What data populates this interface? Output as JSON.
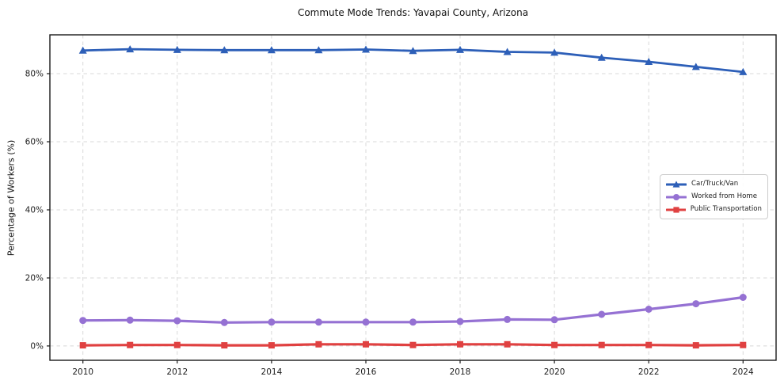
{
  "chart_data": {
    "type": "line",
    "title": "Commute Mode Trends: Yavapai County, Arizona",
    "xlabel": "",
    "ylabel": "Percentage of Workers (%)",
    "x": [
      2010,
      2011,
      2012,
      2013,
      2014,
      2015,
      2016,
      2017,
      2018,
      2019,
      2020,
      2021,
      2022,
      2023,
      2024
    ],
    "series": [
      {
        "name": "Car/Truck/Van",
        "color": "#2d5fb8",
        "marker": "triangle",
        "values": [
          86.8,
          87.2,
          87.0,
          86.9,
          86.9,
          86.9,
          87.1,
          86.7,
          87.0,
          86.4,
          86.2,
          84.7,
          83.5,
          82.0,
          80.5
        ]
      },
      {
        "name": "Worked from Home",
        "color": "#9571d3",
        "marker": "circle",
        "values": [
          7.5,
          7.6,
          7.4,
          6.9,
          7.0,
          7.0,
          7.0,
          7.0,
          7.2,
          7.8,
          7.7,
          9.3,
          10.8,
          12.4,
          14.3
        ]
      },
      {
        "name": "Public Transportation",
        "color": "#e04141",
        "marker": "square",
        "values": [
          0.2,
          0.3,
          0.3,
          0.2,
          0.2,
          0.5,
          0.5,
          0.3,
          0.5,
          0.5,
          0.3,
          0.3,
          0.3,
          0.2,
          0.3
        ]
      }
    ],
    "xticks": [
      2010,
      2012,
      2014,
      2016,
      2018,
      2020,
      2022,
      2024
    ],
    "xtick_labels": [
      "2010",
      "2012",
      "2014",
      "2016",
      "2018",
      "2020",
      "2022",
      "2024"
    ],
    "yticks": [
      0,
      20,
      40,
      60,
      80
    ],
    "ytick_labels": [
      "0%",
      "20%",
      "40%",
      "60%",
      "80%"
    ],
    "xlim": [
      2009.3,
      2024.7
    ],
    "ylim": [
      -4.2,
      91.4
    ],
    "grid": true,
    "legend_position": "right-middle"
  },
  "colors": {
    "background": "#ffffff",
    "grid": "#d8d8d8",
    "spine": "#1a1a1a",
    "text": "#1c1c1c",
    "car_truck_van": "#2d5fb8",
    "worked_from_home": "#9571d3",
    "public_transportation": "#e04141"
  }
}
